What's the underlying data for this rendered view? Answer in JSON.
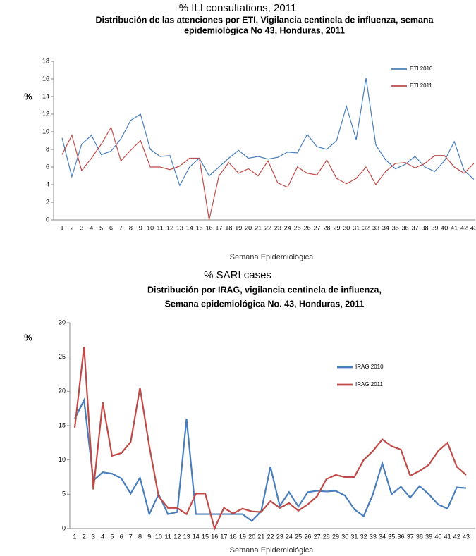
{
  "chart_data": [
    {
      "type": "line",
      "heading": "% ILI consultations, 2011",
      "title": [
        "Distribución de las atenciones por ETI, Vigilancia centinela de influenza, semana",
        "epidemiológica No 43, Honduras, 2011"
      ],
      "y_label": "%",
      "x_label": "Semana Epidemiológica",
      "categories": [
        "1",
        "2",
        "3",
        "4",
        "5",
        "6",
        "7",
        "8",
        "9",
        "10",
        "11",
        "12",
        "13",
        "14",
        "15",
        "16",
        "17",
        "18",
        "19",
        "20",
        "21",
        "22",
        "23",
        "24",
        "25",
        "26",
        "27",
        "28",
        "29",
        "30",
        "31",
        "32",
        "33",
        "34",
        "35",
        "36",
        "37",
        "38",
        "39",
        "40",
        "41",
        "42",
        "43"
      ],
      "series": [
        {
          "name": "ETI 2010",
          "color": "#4a7ebb",
          "values": [
            9.3,
            4.9,
            8.6,
            9.6,
            7.4,
            7.8,
            9.2,
            11.3,
            12,
            8,
            7.2,
            7.3,
            3.9,
            6,
            7,
            5,
            6,
            7,
            7.9,
            7,
            7.2,
            6.9,
            7.1,
            7.7,
            7.6,
            9.7,
            8.3,
            8,
            9,
            12.9,
            9.1,
            16.1,
            8.5,
            6.8,
            5.8,
            6.3,
            7.2,
            6,
            5.5,
            6.7,
            8.9,
            5.6,
            4.6
          ]
        },
        {
          "name": "ETI 2011",
          "color": "#be4b48",
          "values": [
            7.4,
            9.6,
            5.6,
            7,
            8.6,
            10.5,
            6.7,
            7.9,
            9,
            6,
            6,
            5.7,
            6.1,
            7,
            7,
            0,
            5,
            6.5,
            5.3,
            5.8,
            5,
            6.7,
            4.2,
            3.7,
            6,
            5.3,
            5.1,
            6.8,
            4.7,
            4.1,
            4.7,
            6,
            4,
            5.5,
            6.4,
            6.5,
            5.9,
            6.4,
            7.3,
            7.3,
            6,
            5.3,
            6.4
          ]
        }
      ],
      "ylim": [
        0,
        18
      ],
      "yticks": [
        0,
        2,
        4,
        6,
        8,
        10,
        12,
        14,
        16,
        18
      ],
      "legend": "upper right"
    },
    {
      "type": "line",
      "heading": "% SARI cases",
      "title": [
        "Distribución  por IRAG, vigilancia centinela de influenza,",
        "Semana epidemiológica No. 43, Honduras, 2011"
      ],
      "y_label": "%",
      "x_label": "Semana Epidemiológica",
      "categories": [
        "1",
        "2",
        "3",
        "4",
        "5",
        "6",
        "7",
        "8",
        "9",
        "10",
        "11",
        "12",
        "13",
        "14",
        "15",
        "16",
        "17",
        "18",
        "19",
        "20",
        "21",
        "22",
        "23",
        "24",
        "25",
        "26",
        "27",
        "28",
        "29",
        "30",
        "31",
        "32",
        "33",
        "34",
        "35",
        "36",
        "37",
        "38",
        "39",
        "40",
        "41",
        "42",
        "43"
      ],
      "series": [
        {
          "name": "IRAG 2010",
          "color": "#4a7ebb",
          "values": [
            16,
            18.7,
            7,
            8.2,
            8,
            7.3,
            5.1,
            7.4,
            2.1,
            5,
            2.1,
            2.4,
            16,
            2.1,
            2.1,
            2.1,
            2.1,
            2.1,
            2.1,
            1.1,
            2.5,
            9,
            3.3,
            5.3,
            3.2,
            5.3,
            5.5,
            5.4,
            5.5,
            4.8,
            2.8,
            1.8,
            5,
            9.5,
            5,
            6.1,
            4.5,
            6.2,
            5,
            3.5,
            2.9,
            6,
            5.9
          ]
        },
        {
          "name": "IRAG 2011",
          "color": "#be4b48",
          "values": [
            14.7,
            26.5,
            5.7,
            18.4,
            10.6,
            11,
            12.6,
            20.5,
            12,
            4.7,
            3,
            3,
            2.1,
            5.1,
            5.1,
            0,
            3,
            2.2,
            2.9,
            2.5,
            2.4,
            4,
            3,
            3.7,
            2.6,
            3.5,
            4.7,
            7.2,
            7.8,
            7.5,
            7.5,
            10,
            11.3,
            13,
            12,
            11.5,
            7.7,
            8.4,
            9.3,
            11.3,
            12.5,
            9,
            7.8
          ]
        }
      ],
      "ylim": [
        0,
        30
      ],
      "yticks": [
        0,
        5,
        10,
        15,
        20,
        25,
        30
      ],
      "legend": "center right"
    }
  ]
}
